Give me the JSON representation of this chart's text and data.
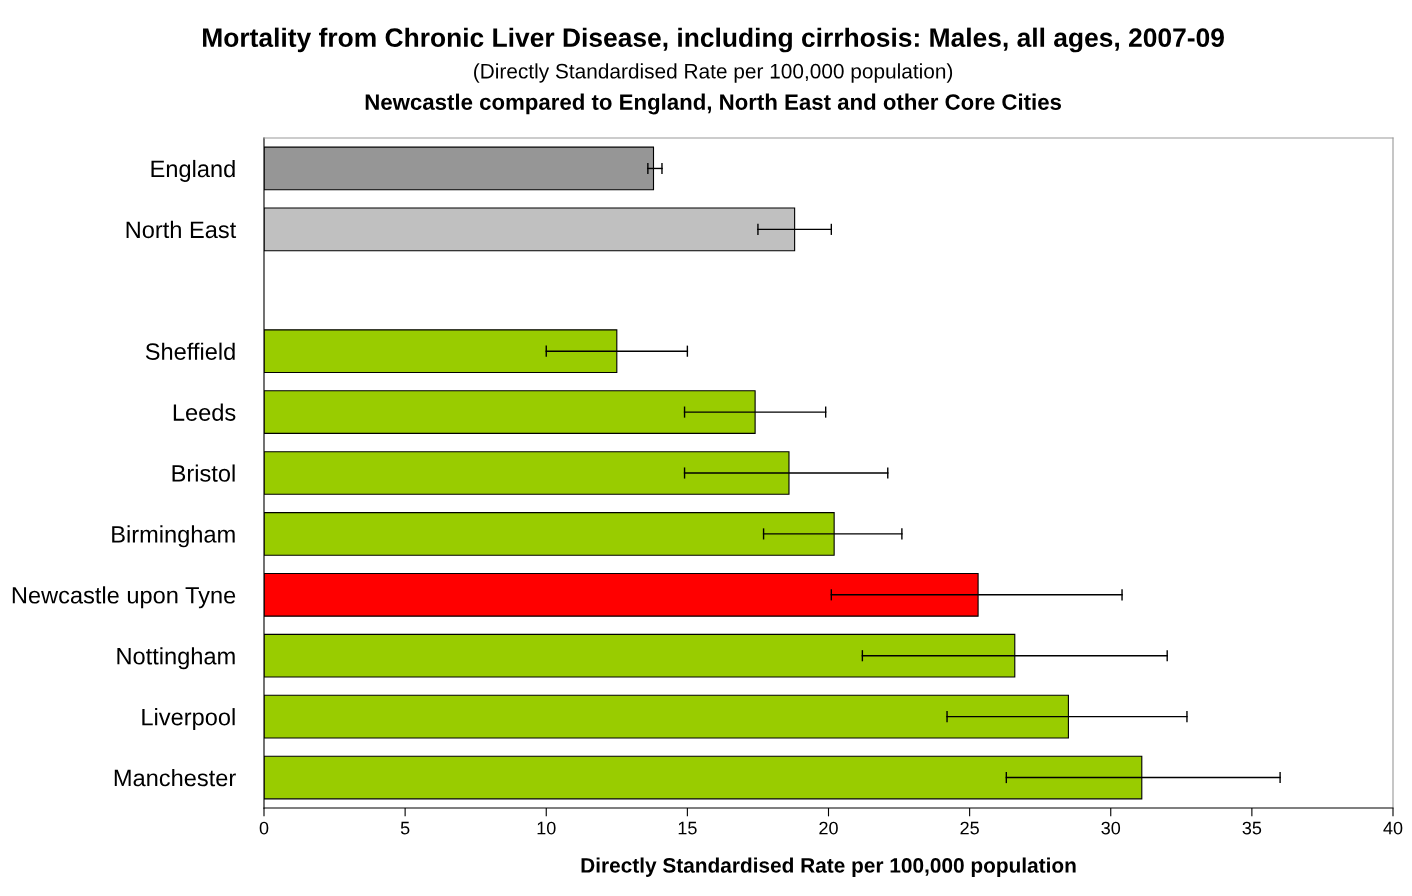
{
  "chart_data": {
    "type": "bar",
    "orientation": "horizontal",
    "title": "Mortality from Chronic Liver Disease, including cirrhosis: Males, all ages, 2007-09",
    "subtitle": "(Directly Standardised Rate per 100,000 population)",
    "annotations": [
      "Newcastle compared to England, North East and other Core Cities"
    ],
    "xlabel": "Directly Standardised Rate per 100,000 population",
    "categories": [
      "England",
      "North East",
      null,
      "Sheffield",
      "Leeds",
      "Bristol",
      "Birmingham",
      "Newcastle upon Tyne",
      "Nottingham",
      "Liverpool",
      "Manchester"
    ],
    "values": [
      13.8,
      18.8,
      null,
      12.5,
      17.4,
      18.6,
      20.2,
      25.3,
      26.6,
      28.5,
      31.1
    ],
    "errors": [
      [
        13.6,
        14.1
      ],
      [
        17.5,
        20.1
      ],
      null,
      [
        10.0,
        15.0
      ],
      [
        14.9,
        19.9
      ],
      [
        14.9,
        22.1
      ],
      [
        17.7,
        22.6
      ],
      [
        20.1,
        30.4
      ],
      [
        21.2,
        32.0
      ],
      [
        24.2,
        32.7
      ],
      [
        26.3,
        36.0
      ]
    ],
    "colors": [
      "#969696",
      "#c0c0c0",
      "#99cc00",
      "#99cc00",
      "#99cc00",
      "#99cc00",
      "#99cc00",
      "#ff0000",
      "#99cc00",
      "#99cc00",
      "#99cc00"
    ],
    "xlim": [
      0,
      40
    ],
    "xticks": [
      0,
      5,
      10,
      15,
      20,
      25,
      30,
      35,
      40
    ],
    "grid": false
  }
}
